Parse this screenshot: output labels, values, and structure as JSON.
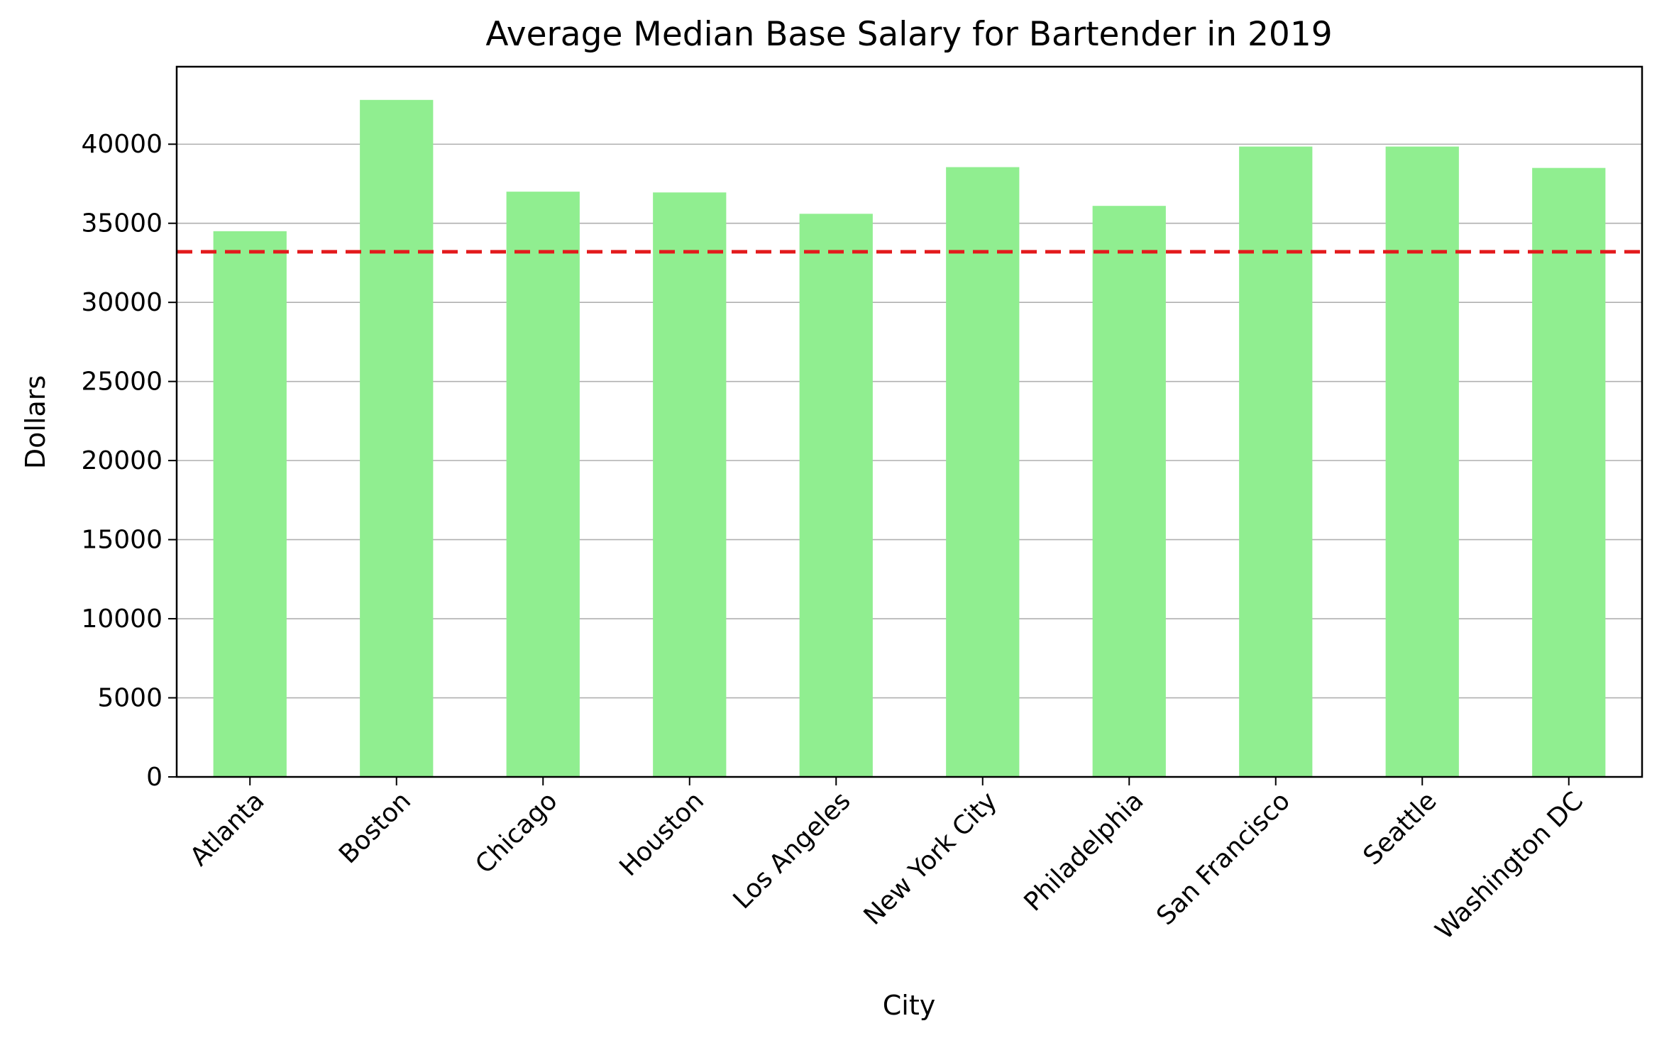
{
  "chart_data": {
    "type": "bar",
    "title": "Average Median Base Salary for Bartender in 2019",
    "xlabel": "City",
    "ylabel": "Dollars",
    "categories": [
      "Atlanta",
      "Boston",
      "Chicago",
      "Houston",
      "Los Angeles",
      "New York City",
      "Philadelphia",
      "San Francisco",
      "Seattle",
      "Washington DC"
    ],
    "values": [
      34500,
      42800,
      37000,
      36950,
      35600,
      38550,
      36100,
      39850,
      39850,
      38500
    ],
    "yticks": [
      0,
      5000,
      10000,
      15000,
      20000,
      25000,
      30000,
      35000,
      40000
    ],
    "ytick_labels": [
      "0",
      "5000",
      "10000",
      "15000",
      "20000",
      "25000",
      "30000",
      "35000",
      "40000"
    ],
    "ylim": [
      0,
      44900
    ],
    "reference_line": {
      "value": 33200,
      "style": "dashed",
      "color": "#e31a1c"
    },
    "bar_color": "#90ee90",
    "grid": "horizontal"
  }
}
